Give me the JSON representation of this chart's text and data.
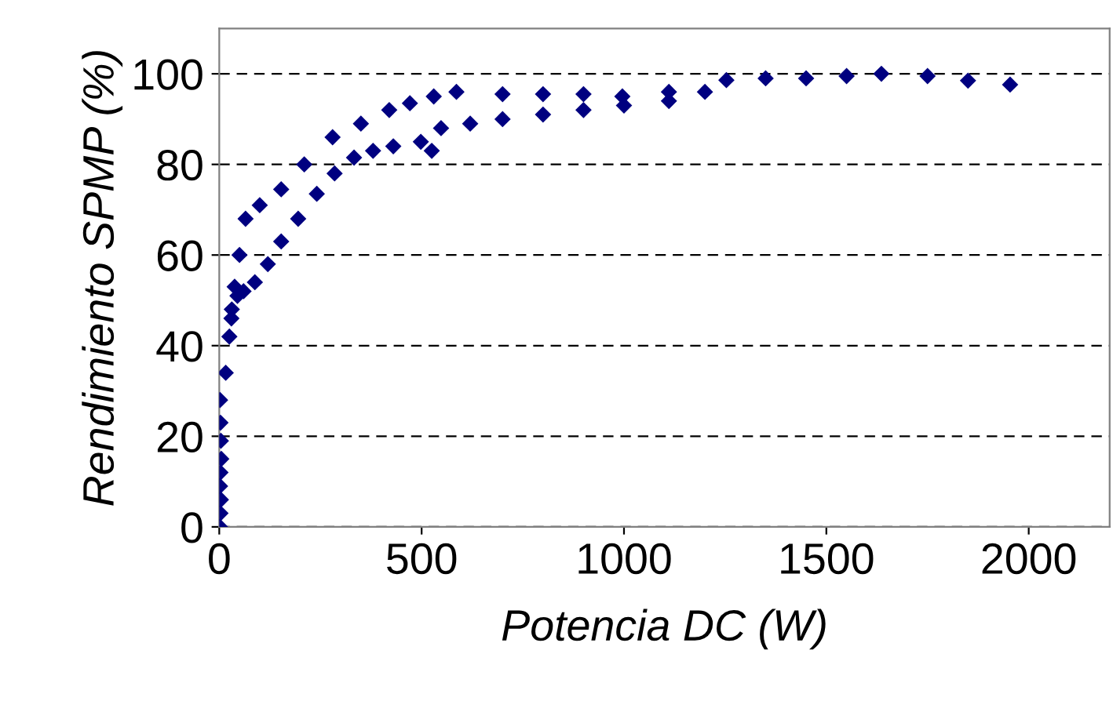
{
  "chart_data": {
    "type": "scatter",
    "xlabel": "Potencia DC (W)",
    "ylabel": "Rendimiento SPMP (%)",
    "xlim": [
      0,
      2200
    ],
    "xticks": [
      0,
      500,
      1000,
      1500,
      2000
    ],
    "ylim": [
      0,
      110
    ],
    "yticks": [
      0,
      20,
      40,
      60,
      80,
      100
    ],
    "grid": "y",
    "marker": "diamond",
    "legend": false,
    "series": [
      {
        "color": "#000080",
        "x": [
          2,
          3,
          4,
          2,
          3,
          5,
          4,
          3,
          2,
          16
        ],
        "values": [
          0,
          3,
          6,
          9,
          12,
          15,
          19,
          23,
          28,
          34
        ]
      },
      {
        "color": "#000080",
        "x": [
          25,
          31,
          45,
          60,
          88,
          120,
          153,
          195,
          241,
          285,
          333,
          380,
          430,
          498,
          525,
          548,
          620,
          700,
          800,
          900,
          1000,
          1111,
          1200,
          1253,
          1350,
          1450,
          1550,
          1636,
          1750,
          1850,
          1954
        ],
        "values": [
          42,
          48,
          51,
          52,
          54,
          58,
          63,
          68,
          73.5,
          78,
          81.5,
          83,
          84,
          85,
          83,
          88,
          89,
          90,
          91,
          92,
          93,
          94,
          96,
          98.6,
          99,
          99,
          99.5,
          100,
          99.5,
          98.5,
          97.6
        ]
      },
      {
        "color": "#000080",
        "x": [
          30,
          38,
          50,
          65,
          100,
          153,
          210,
          280,
          350,
          420,
          471,
          530,
          586,
          700,
          800,
          900,
          996,
          1111
        ],
        "values": [
          46,
          53,
          60,
          68,
          71,
          74.5,
          80,
          86,
          89,
          92,
          93.5,
          95,
          96,
          95.5,
          95.5,
          95.5,
          95,
          96
        ]
      }
    ]
  }
}
